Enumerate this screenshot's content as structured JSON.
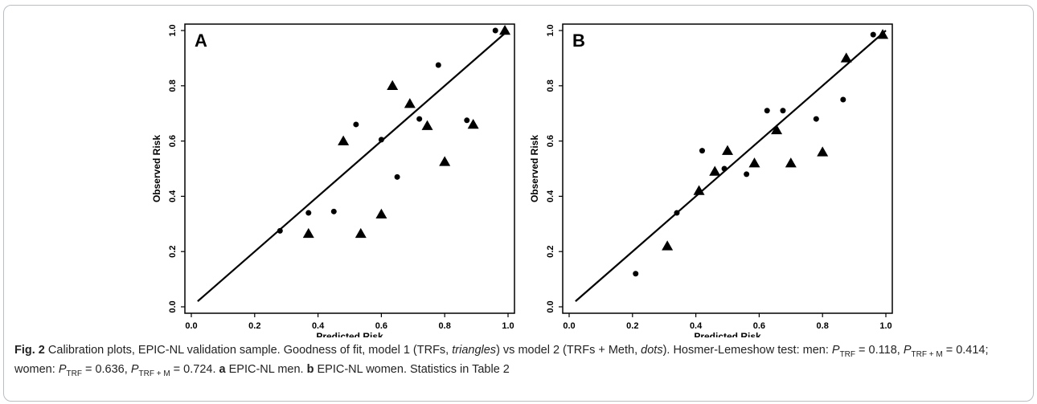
{
  "caption": {
    "figure_label": "Fig. 2",
    "part1": " Calibration plots, EPIC-NL validation sample. Goodness of fit, model 1 (TRFs, ",
    "triangles": "triangles",
    "part2": ") vs model 2 (TRFs + Meth, ",
    "dots": "dots",
    "part3": "). Hosmer-Lemeshow test: men: ",
    "p": "P",
    "sub_trf": "TRF",
    "sub_trf_m": "TRF + M",
    "men_trf_value": " = 0.118, ",
    "men_trfm_value": " = 0.414; women: ",
    "women_trf_value": " = 0.636, ",
    "women_trfm_value": " = 0.724. ",
    "label_a": "a",
    "text_a": " EPIC-NL men. ",
    "label_b": "b",
    "text_b": " EPIC-NL women. Statistics in Table 2"
  },
  "chart_data": [
    {
      "type": "scatter",
      "panel": "A",
      "xlabel": "Predicted Risk",
      "ylabel": "Observed Risk",
      "xlim": [
        0.0,
        1.0
      ],
      "ylim": [
        0.0,
        1.0
      ],
      "xticks": [
        "0.0",
        "0.2",
        "0.4",
        "0.6",
        "0.8",
        "1.0"
      ],
      "yticks": [
        "0.0",
        "0.2",
        "0.4",
        "0.6",
        "0.8",
        "1.0"
      ],
      "grid": false,
      "reference_line": {
        "from": [
          0.02,
          0.02
        ],
        "to": [
          1.0,
          1.0
        ]
      },
      "series": [
        {
          "marker": "triangle",
          "points": [
            [
              0.37,
              0.265
            ],
            [
              0.48,
              0.6
            ],
            [
              0.535,
              0.265
            ],
            [
              0.6,
              0.335
            ],
            [
              0.635,
              0.8
            ],
            [
              0.69,
              0.735
            ],
            [
              0.745,
              0.655
            ],
            [
              0.8,
              0.525
            ],
            [
              0.89,
              0.66
            ],
            [
              0.99,
              1.0
            ]
          ]
        },
        {
          "marker": "dot",
          "points": [
            [
              0.28,
              0.275
            ],
            [
              0.37,
              0.34
            ],
            [
              0.45,
              0.345
            ],
            [
              0.52,
              0.66
            ],
            [
              0.6,
              0.605
            ],
            [
              0.65,
              0.47
            ],
            [
              0.72,
              0.68
            ],
            [
              0.78,
              0.875
            ],
            [
              0.87,
              0.675
            ],
            [
              0.96,
              1.0
            ]
          ]
        }
      ]
    },
    {
      "type": "scatter",
      "panel": "B",
      "xlabel": "Predicted Risk",
      "ylabel": "Observed Risk",
      "xlim": [
        0.0,
        1.0
      ],
      "ylim": [
        0.0,
        1.0
      ],
      "xticks": [
        "0.0",
        "0.2",
        "0.4",
        "0.6",
        "0.8",
        "1.0"
      ],
      "yticks": [
        "0.0",
        "0.2",
        "0.4",
        "0.6",
        "0.8",
        "1.0"
      ],
      "grid": false,
      "reference_line": {
        "from": [
          0.02,
          0.02
        ],
        "to": [
          1.0,
          1.0
        ]
      },
      "series": [
        {
          "marker": "triangle",
          "points": [
            [
              0.31,
              0.22
            ],
            [
              0.41,
              0.42
            ],
            [
              0.46,
              0.49
            ],
            [
              0.5,
              0.565
            ],
            [
              0.585,
              0.52
            ],
            [
              0.655,
              0.64
            ],
            [
              0.7,
              0.52
            ],
            [
              0.8,
              0.56
            ],
            [
              0.875,
              0.9
            ],
            [
              0.99,
              0.985
            ]
          ]
        },
        {
          "marker": "dot",
          "points": [
            [
              0.21,
              0.12
            ],
            [
              0.34,
              0.34
            ],
            [
              0.42,
              0.565
            ],
            [
              0.49,
              0.5
            ],
            [
              0.56,
              0.48
            ],
            [
              0.625,
              0.71
            ],
            [
              0.675,
              0.71
            ],
            [
              0.78,
              0.68
            ],
            [
              0.865,
              0.75
            ],
            [
              0.96,
              0.985
            ]
          ]
        }
      ]
    }
  ]
}
